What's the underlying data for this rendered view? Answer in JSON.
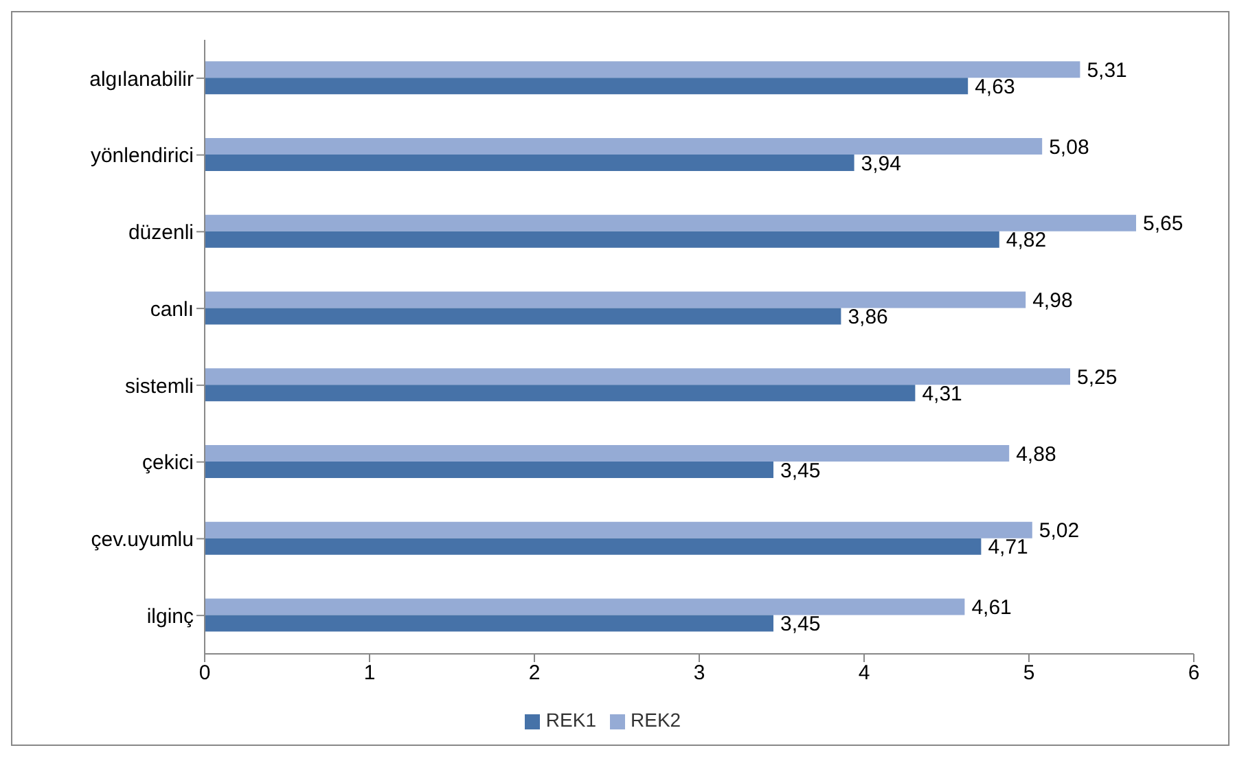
{
  "chart_data": {
    "type": "bar",
    "orientation": "horizontal",
    "categories": [
      "algılanabilir",
      "yönlendirici",
      "düzenli",
      "canlı",
      "sistemli",
      "çekici",
      "çev.uyumlu",
      "ilginç"
    ],
    "series": [
      {
        "name": "REK2",
        "color": "#95abd5",
        "values": [
          5.31,
          5.08,
          5.65,
          4.98,
          5.25,
          4.88,
          5.02,
          4.61
        ],
        "value_labels": [
          "5,31",
          "5,08",
          "5,65",
          "4,98",
          "5,25",
          "4,88",
          "5,02",
          "4,61"
        ]
      },
      {
        "name": "REK1",
        "color": "#4672a8",
        "values": [
          4.63,
          3.94,
          4.82,
          3.86,
          4.31,
          3.45,
          4.71,
          3.45
        ],
        "value_labels": [
          "4,63",
          "3,94",
          "4,82",
          "3,86",
          "4,31",
          "3,45",
          "4,71",
          "3,45"
        ]
      }
    ],
    "xlim": [
      0,
      6
    ],
    "xticks": [
      0,
      1,
      2,
      3,
      4,
      5,
      6
    ],
    "grid": false,
    "legend": "bottom"
  }
}
